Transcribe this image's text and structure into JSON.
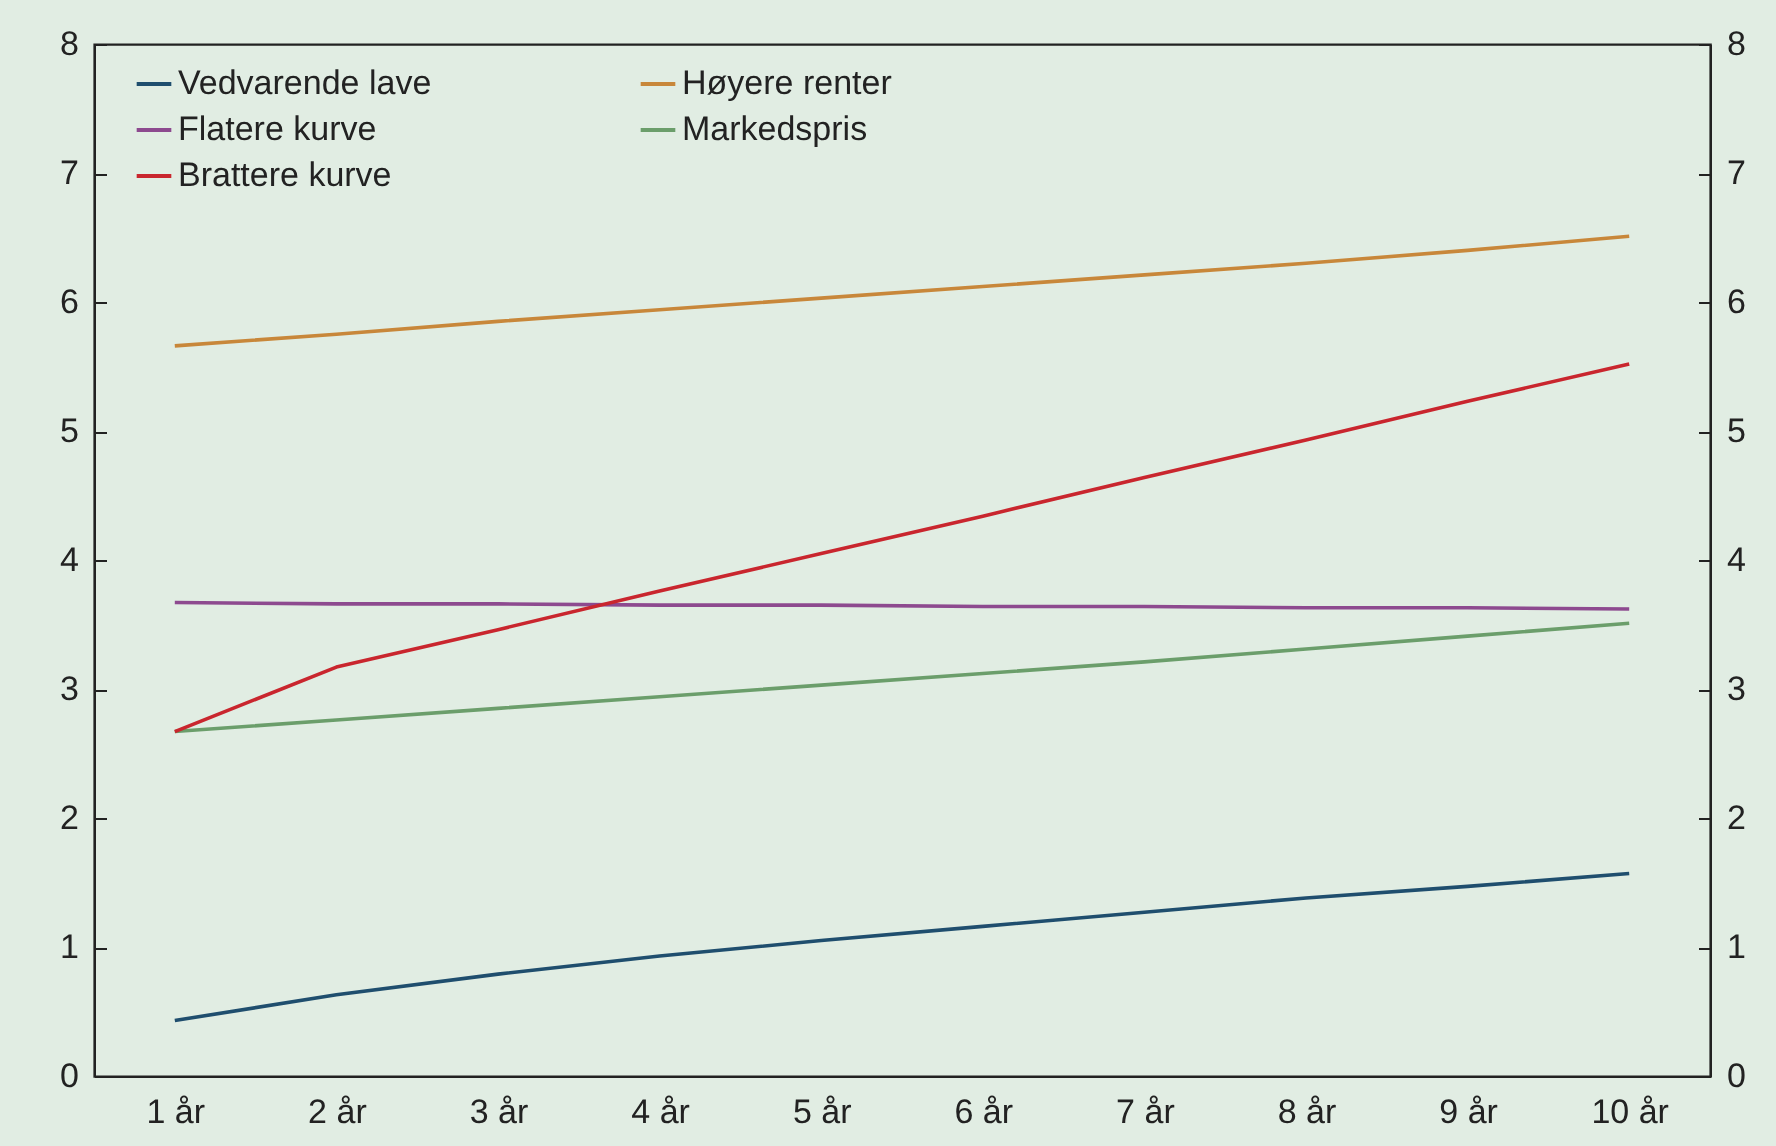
{
  "chart_data": {
    "type": "line",
    "categories": [
      "1 år",
      "2 år",
      "3 år",
      "4 år",
      "5 år",
      "6 år",
      "7 år",
      "8 år",
      "9 år",
      "10 år"
    ],
    "series": [
      {
        "name": "Vedvarende lave",
        "color": "#1f4e6e",
        "values": [
          0.43,
          0.63,
          0.79,
          0.93,
          1.05,
          1.16,
          1.27,
          1.38,
          1.47,
          1.57
        ]
      },
      {
        "name": "Høyere renter",
        "color": "#c8873a",
        "values": [
          5.66,
          5.75,
          5.85,
          5.94,
          6.03,
          6.12,
          6.21,
          6.3,
          6.4,
          6.51
        ]
      },
      {
        "name": "Flatere kurve",
        "color": "#8d4a8f",
        "values": [
          3.67,
          3.66,
          3.66,
          3.65,
          3.65,
          3.64,
          3.64,
          3.63,
          3.63,
          3.62
        ]
      },
      {
        "name": "Markedspris",
        "color": "#6b9e6b",
        "values": [
          2.67,
          2.76,
          2.85,
          2.94,
          3.03,
          3.12,
          3.21,
          3.31,
          3.41,
          3.51
        ]
      },
      {
        "name": "Brattere kurve",
        "color": "#c9262e",
        "values": [
          2.67,
          3.17,
          3.46,
          3.76,
          4.05,
          4.34,
          4.64,
          4.93,
          5.23,
          5.52
        ]
      }
    ],
    "ylim": [
      0,
      8
    ],
    "yticks": [
      0,
      1,
      2,
      3,
      4,
      5,
      6,
      7,
      8
    ],
    "y2lim": [
      0,
      8
    ],
    "y2ticks": [
      0,
      1,
      2,
      3,
      4,
      5,
      6,
      7,
      8
    ],
    "legend": "top left",
    "grid": false,
    "marker": "none",
    "line_style": "solid"
  }
}
